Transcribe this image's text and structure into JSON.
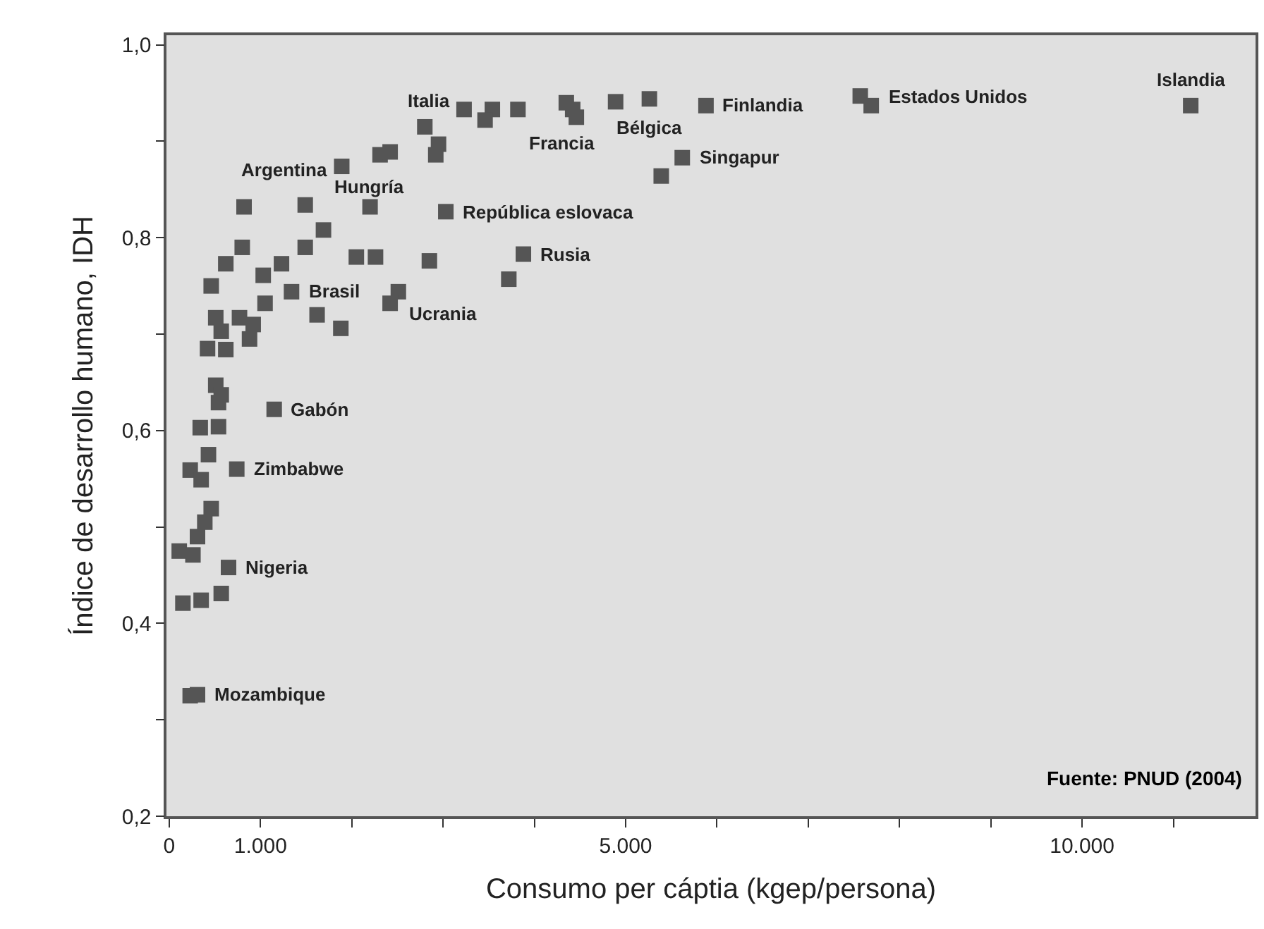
{
  "chart_data": {
    "type": "scatter",
    "xlabel": "Consumo per cáptia (kgep/persona)",
    "ylabel": "Índice de desarrollo humano, IDH",
    "marker": "square",
    "grid": false,
    "legend": false,
    "xlim": [
      -30,
      11900
    ],
    "ylim": [
      0.2,
      1.01
    ],
    "xticks": [
      0,
      {
        "value": 1000,
        "label": "1.000"
      },
      {
        "value": 2000,
        "label": null
      },
      {
        "value": 3000,
        "label": null
      },
      {
        "value": 4000,
        "label": null
      },
      {
        "value": 5000,
        "label": "5.000"
      },
      {
        "value": 6000,
        "label": null
      },
      {
        "value": 7000,
        "label": null
      },
      {
        "value": 8000,
        "label": null
      },
      {
        "value": 9000,
        "label": null
      },
      {
        "value": 10000,
        "label": "10.000"
      },
      {
        "value": 11000,
        "label": null
      }
    ],
    "yticks": [
      {
        "value": 0.2,
        "label": "0,2"
      },
      {
        "value": 0.3,
        "label": null
      },
      {
        "value": 0.4,
        "label": "0,4"
      },
      {
        "value": 0.5,
        "label": null
      },
      {
        "value": 0.6,
        "label": "0,6"
      },
      {
        "value": 0.7,
        "label": null
      },
      {
        "value": 0.8,
        "label": "0,8"
      },
      {
        "value": 0.9,
        "label": null
      },
      {
        "value": 1.0,
        "label": "1,0"
      }
    ],
    "series": [
      {
        "color": "#555555",
        "x": [
          3230,
          3540,
          3820,
          3460,
          4420,
          4350,
          4460,
          4890,
          5260,
          5880,
          7570,
          7690,
          11190,
          5620,
          5390,
          2800,
          2950,
          2920,
          2310,
          2420,
          1890,
          2200,
          3030,
          1490,
          820,
          1690,
          1490,
          800,
          2050,
          2260,
          2850,
          3880,
          3720,
          2510,
          2420,
          1340,
          1230,
          1030,
          1050,
          1620,
          1880,
          460,
          620,
          510,
          770,
          920,
          880,
          570,
          420,
          620,
          510,
          570,
          1150,
          540,
          340,
          540,
          430,
          740,
          230,
          350,
          460,
          390,
          310,
          110,
          260,
          650,
          150,
          350,
          570,
          310,
          230
        ],
        "values": [
          0.933,
          0.933,
          0.933,
          0.922,
          0.933,
          0.94,
          0.925,
          0.941,
          0.944,
          0.937,
          0.947,
          0.937,
          0.937,
          0.883,
          0.864,
          0.915,
          0.897,
          0.886,
          0.886,
          0.889,
          0.874,
          0.832,
          0.827,
          0.834,
          0.832,
          0.808,
          0.79,
          0.79,
          0.78,
          0.78,
          0.776,
          0.783,
          0.757,
          0.744,
          0.732,
          0.744,
          0.773,
          0.761,
          0.732,
          0.72,
          0.706,
          0.75,
          0.773,
          0.717,
          0.717,
          0.71,
          0.695,
          0.703,
          0.685,
          0.684,
          0.647,
          0.637,
          0.622,
          0.629,
          0.603,
          0.604,
          0.575,
          0.56,
          0.559,
          0.549,
          0.519,
          0.505,
          0.49,
          0.475,
          0.471,
          0.458,
          0.421,
          0.424,
          0.431,
          0.326,
          0.325
        ]
      }
    ],
    "annotations": [
      {
        "text": "Italia",
        "x": 3230,
        "y": 0.933
      },
      {
        "text": "Argentina",
        "x": 1890,
        "y": 0.874
      },
      {
        "text": "Hungría",
        "x": 2200,
        "y": 0.832
      },
      {
        "text": "Francia",
        "x": 4460,
        "y": 0.925
      },
      {
        "text": "Bélgica",
        "x": 5260,
        "y": 0.944
      },
      {
        "text": "Finlandia",
        "x": 5880,
        "y": 0.937
      },
      {
        "text": "Estados Unidos",
        "x": 7690,
        "y": 0.937
      },
      {
        "text": "Islandia",
        "x": 11190,
        "y": 0.937
      },
      {
        "text": "Singapur",
        "x": 5620,
        "y": 0.883
      },
      {
        "text": "República eslovaca",
        "x": 3030,
        "y": 0.827
      },
      {
        "text": "Rusia",
        "x": 3880,
        "y": 0.783
      },
      {
        "text": "Brasil",
        "x": 1340,
        "y": 0.744
      },
      {
        "text": "Ucrania",
        "x": 2510,
        "y": 0.744
      },
      {
        "text": "Gabón",
        "x": 1150,
        "y": 0.622
      },
      {
        "text": "Zimbabwe",
        "x": 740,
        "y": 0.56
      },
      {
        "text": "Nigeria",
        "x": 650,
        "y": 0.458
      },
      {
        "text": "Mozambique",
        "x": 310,
        "y": 0.326
      },
      "Fuente: PNUD (2004)"
    ]
  }
}
